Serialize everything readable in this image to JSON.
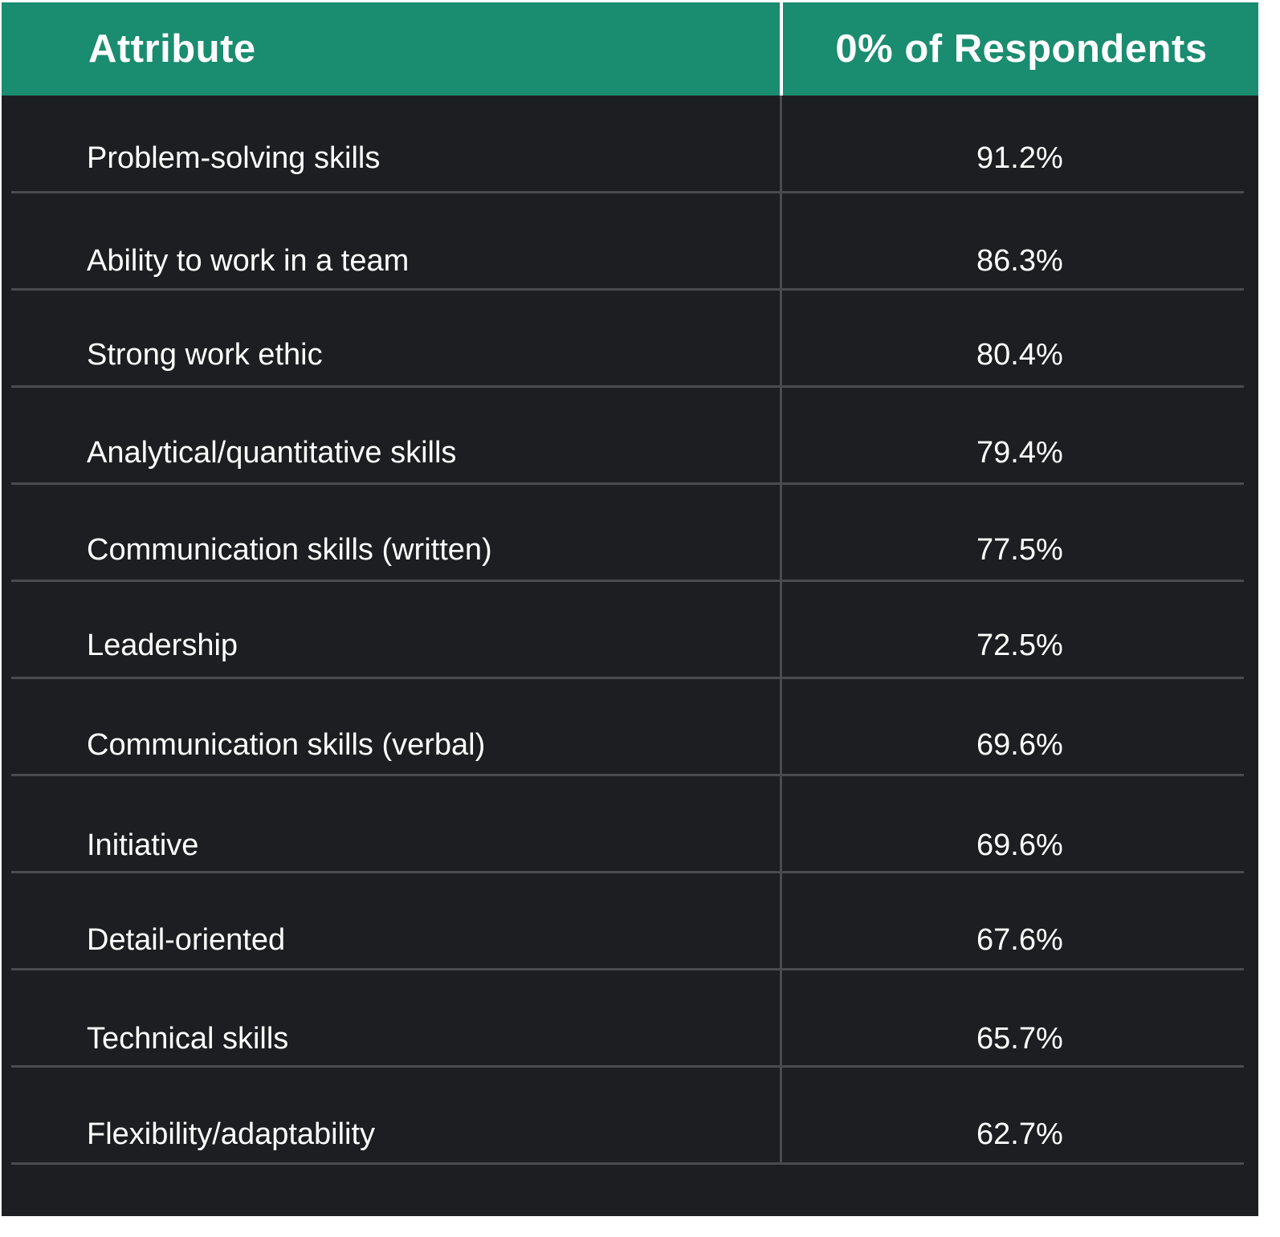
{
  "table": {
    "headers": {
      "attribute": "Attribute",
      "percent": "0% of Respondents"
    },
    "rows": [
      {
        "attribute": "Problem-solving skills",
        "percent": "91.2%"
      },
      {
        "attribute": "Ability to work in a team",
        "percent": "86.3%"
      },
      {
        "attribute": "Strong work ethic",
        "percent": "80.4%"
      },
      {
        "attribute": "Analytical/quantitative skills",
        "percent": "79.4%"
      },
      {
        "attribute": "Communication skills (written)",
        "percent": "77.5%"
      },
      {
        "attribute": "Leadership",
        "percent": "72.5%"
      },
      {
        "attribute": "Communication skills (verbal)",
        "percent": "69.6%"
      },
      {
        "attribute": "Initiative",
        "percent": "69.6%"
      },
      {
        "attribute": "Detail-oriented",
        "percent": "67.6%"
      },
      {
        "attribute": "Technical skills",
        "percent": "65.7%"
      },
      {
        "attribute": "Flexibility/adaptability",
        "percent": "62.7%"
      }
    ]
  },
  "colors": {
    "header_background": "#1a8c6f",
    "body_background": "#1d1e21",
    "divider": "#4a4b4e",
    "text": "#ffffff"
  }
}
